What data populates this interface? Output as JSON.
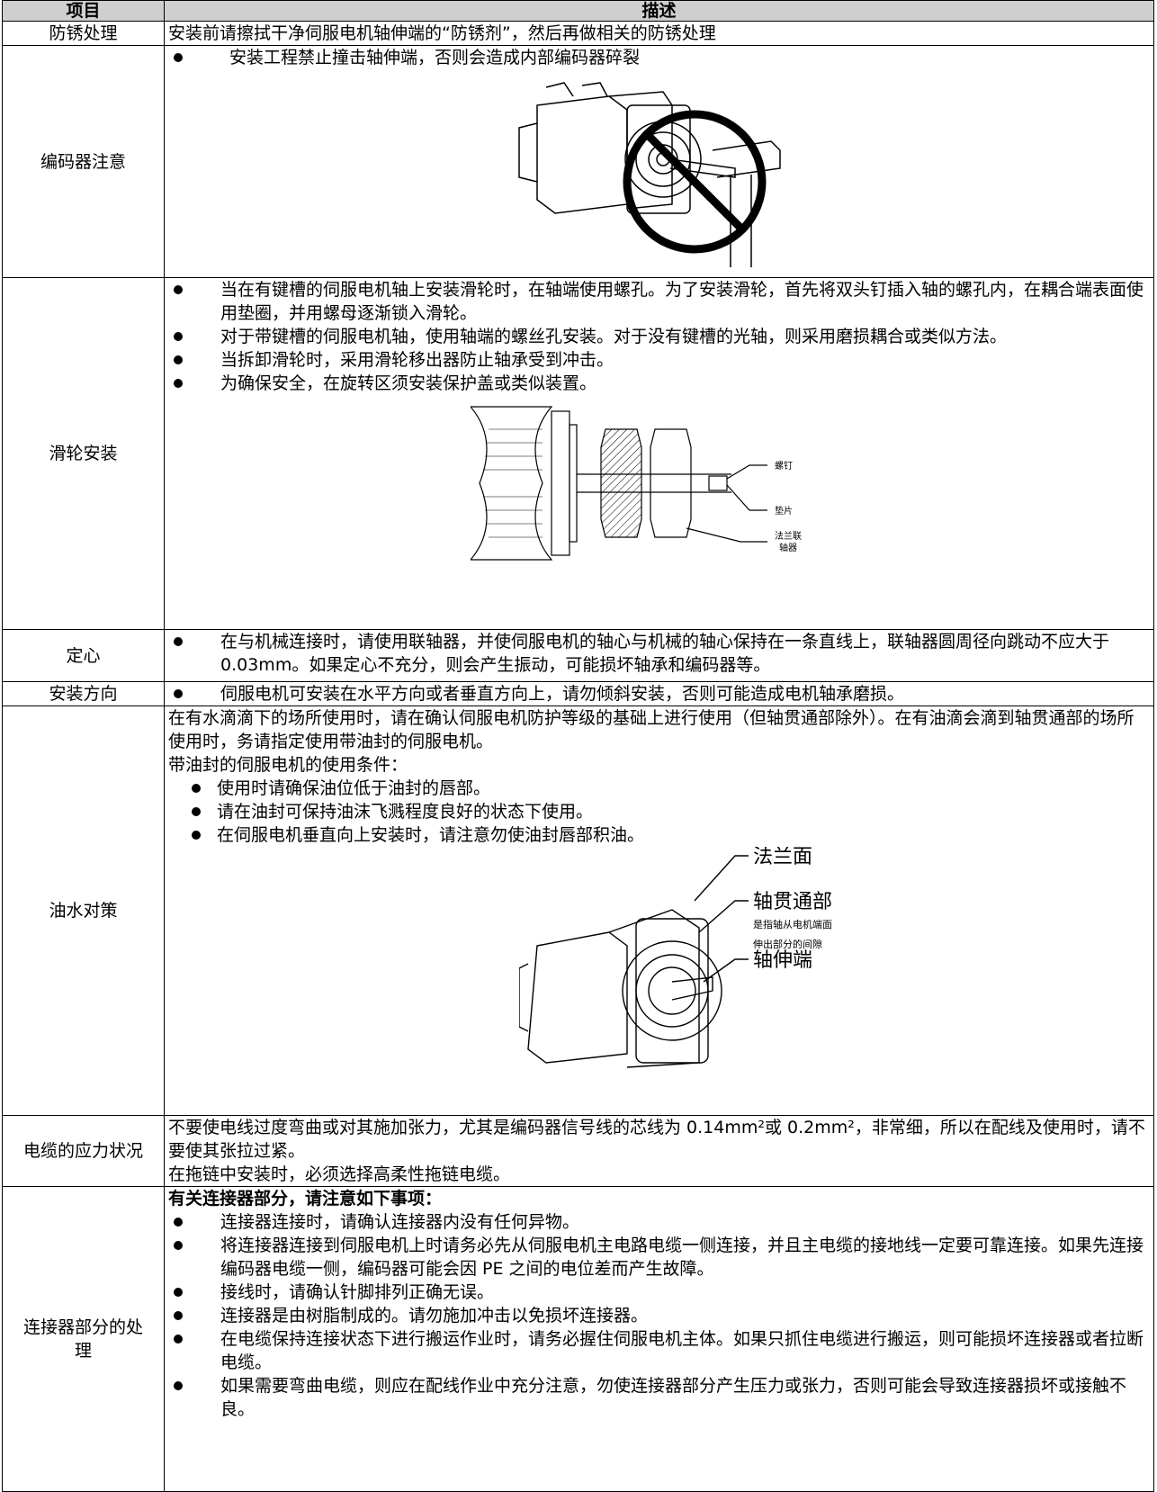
{
  "header": {
    "item": "项目",
    "description": "描述"
  },
  "rows": [
    {
      "item": "防锈处理",
      "paragraphs": [
        "安装前请擦拭干净伺服电机轴伸端的“防锈剂”，然后再做相关的防锈处理"
      ]
    },
    {
      "item": "编码器注意",
      "bullets": [
        "安装工程禁止撞击轴伸端，否则会造成内部编码器碎裂"
      ]
    },
    {
      "item": "滑轮安装",
      "bullets": [
        "当在有键槽的伺服电机轴上安装滑轮时，在轴端使用螺孔。为了安装滑轮，首先将双头钉插入轴的螺孔内，在耦合端表面使用垫圈，并用螺母逐渐锁入滑轮。",
        "对于带键槽的伺服电机轴，使用轴端的螺丝孔安装。对于没有键槽的光轴，则采用磨损耦合或类似方法。",
        "当拆卸滑轮时，采用滑轮移出器防止轴承受到冲击。",
        "为确保安全，在旋转区须安装保护盖或类似装置。"
      ],
      "figure_labels": [
        "螺钉",
        "垫片",
        "法兰联",
        "轴器"
      ]
    },
    {
      "item": "定心",
      "bullets": [
        "在与机械连接时，请使用联轴器，并使伺服电机的轴心与机械的轴心保持在一条直线上，联轴器圆周径向跳动不应大于 0.03mm。如果定心不充分，则会产生振动，可能损坏轴承和编码器等。"
      ]
    },
    {
      "item": "安装方向",
      "bullets": [
        "伺服电机可安装在水平方向或者垂直方向上，请勿倾斜安装，否则可能造成电机轴承磨损。"
      ]
    },
    {
      "item": "油水对策",
      "paragraphs": [
        "在有水滴滴下的场所使用时，请在确认伺服电机防护等级的基础上进行使用（但轴贯通部除外）。在有油滴会滴到轴贯通部的场所使用时，务请指定使用带油封的伺服电机。",
        "带油封的伺服电机的使用条件："
      ],
      "sub_bullets": [
        "使用时请确保油位低于油封的唇部。",
        "请在油封可保持油沫飞溅程度良好的状态下使用。",
        "在伺服电机垂直向上安装时，请注意勿使油封唇部积油。"
      ],
      "figure_labels": [
        "法兰面",
        "轴贯通部",
        "是指轴从电机端面",
        "伸出部分的间隙",
        "轴伸端"
      ]
    },
    {
      "item": "电缆的应力状况",
      "paragraphs": [
        "不要使电线过度弯曲或对其施加张力，尤其是编码器信号线的芯线为 0.14mm²或 0.2mm²，非常细，所以在配线及使用时，请不要使其张拉过紧。",
        "在拖链中安装时，必须选择高柔性拖链电缆。"
      ]
    },
    {
      "item": "连接器部分的处理",
      "lead": "有关连接器部分，请注意如下事项：",
      "bullets": [
        "连接器连接时，请确认连接器内没有任何异物。",
        "将连接器连接到伺服电机上时请务必先从伺服电机主电路电缆一侧连接，并且主电缆的接地线一定要可靠连接。如果先连接编码器电缆一侧，编码器可能会因 PE 之间的电位差而产生故障。",
        "接线时，请确认针脚排列正确无误。",
        "连接器是由树脂制成的。请勿施加冲击以免损坏连接器。",
        "在电缆保持连接状态下进行搬运作业时，请务必握住伺服电机主体。如果只抓住电缆进行搬运，则可能损坏连接器或者拉断电缆。",
        "如果需要弯曲电缆，则应在配线作业中充分注意，勿使连接器部分产生压力或张力，否则可能会导致连接器损坏或接触不良。"
      ]
    }
  ]
}
